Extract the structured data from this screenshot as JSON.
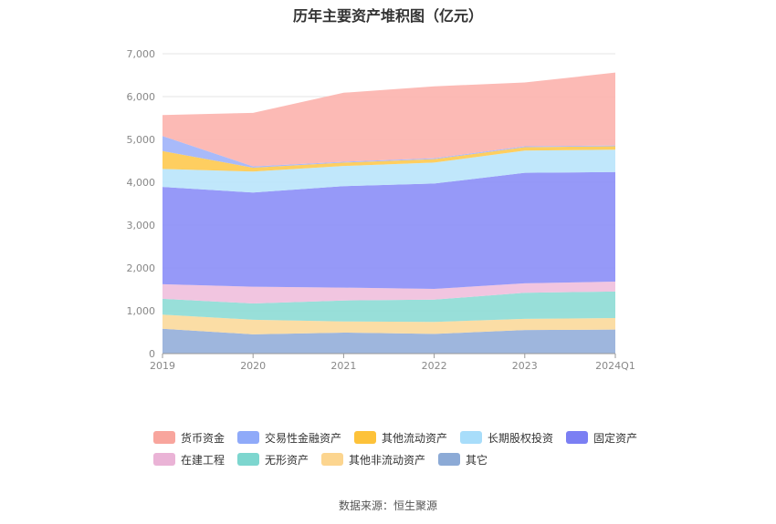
{
  "title": "历年主要资产堆积图（亿元）",
  "source": "数据来源：恒生聚源",
  "chart_data": {
    "type": "area",
    "stacked": true,
    "title": "历年主要资产堆积图（亿元）",
    "categories": [
      "2019",
      "2020",
      "2021",
      "2022",
      "2023",
      "2024Q1"
    ],
    "ylim": [
      0,
      7000
    ],
    "yticks": [
      0,
      1000,
      2000,
      3000,
      4000,
      5000,
      6000,
      7000
    ],
    "ytick_labels": [
      "0",
      "1,000",
      "2,000",
      "3,000",
      "4,000",
      "5,000",
      "6,000",
      "7,000"
    ],
    "grid": true,
    "legend_position": "bottom",
    "series": [
      {
        "name": "其它",
        "color": "#93aed9",
        "values": [
          580,
          450,
          490,
          460,
          550,
          560
        ]
      },
      {
        "name": "其他非流动资产",
        "color": "#fbd99b",
        "values": [
          330,
          340,
          260,
          280,
          260,
          270
        ]
      },
      {
        "name": "无形资产",
        "color": "#8ddbd5",
        "values": [
          370,
          380,
          490,
          520,
          610,
          620
        ]
      },
      {
        "name": "在建工程",
        "color": "#f0bfdd",
        "values": [
          340,
          390,
          300,
          250,
          220,
          230
        ]
      },
      {
        "name": "固定资产",
        "color": "#8b8ef7",
        "values": [
          2270,
          2200,
          2370,
          2460,
          2580,
          2560
        ]
      },
      {
        "name": "长期股权投资",
        "color": "#b9e4fb",
        "values": [
          420,
          490,
          470,
          490,
          520,
          520
        ]
      },
      {
        "name": "其他流动资产",
        "color": "#fec94f",
        "values": [
          420,
          90,
          80,
          80,
          80,
          80
        ]
      },
      {
        "name": "交易性金融资产",
        "color": "#9fb3fa",
        "values": [
          350,
          30,
          20,
          20,
          20,
          20
        ]
      },
      {
        "name": "货币资金",
        "color": "#fcb3ad",
        "values": [
          490,
          1250,
          1610,
          1680,
          1490,
          1700
        ]
      }
    ]
  },
  "legend": [
    {
      "name": "货币资金",
      "color": "#f8a59d"
    },
    {
      "name": "交易性金融资产",
      "color": "#8faaf9"
    },
    {
      "name": "其他流动资产",
      "color": "#fdc23a"
    },
    {
      "name": "长期股权投资",
      "color": "#a8ddfa"
    },
    {
      "name": "固定资产",
      "color": "#7b7ff3"
    },
    {
      "name": "在建工程",
      "color": "#eab3d6"
    },
    {
      "name": "无形资产",
      "color": "#7dd6cf"
    },
    {
      "name": "其他非流动资产",
      "color": "#fcd58f"
    },
    {
      "name": "其它",
      "color": "#8caad6"
    }
  ]
}
